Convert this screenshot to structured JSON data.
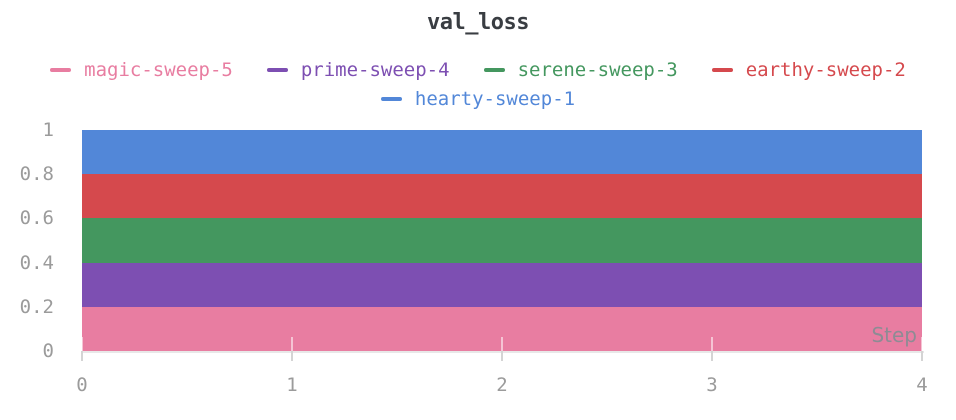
{
  "panel": {
    "title": "val_loss"
  },
  "colors": {
    "background": "#ffffff",
    "title_text": "#393d42",
    "axis_text": "#9b9b9b",
    "step_label_text": "#8e8b94",
    "axis_line": "#e8e8e8",
    "tick_mark": "#d4d4d4",
    "pink": "#e87da1",
    "purple": "#7d4fb2",
    "green": "#44975f",
    "red": "#d5494d",
    "blue": "#5287d8"
  },
  "chart_data": {
    "type": "area",
    "title": "val_loss",
    "xlabel": "Step",
    "ylabel": "",
    "x": [
      0,
      1,
      2,
      3,
      4
    ],
    "xlim": [
      0,
      4
    ],
    "ylim": [
      0,
      1
    ],
    "x_ticks": [
      0,
      1,
      2,
      3,
      4
    ],
    "x_tick_labels": [
      "0",
      "1",
      "2",
      "3",
      "4"
    ],
    "y_ticks": [
      1,
      0.8,
      0.6,
      0.4,
      0.2,
      0
    ],
    "y_tick_labels": [
      "1",
      "0.8",
      "0.6",
      "0.4",
      "0.2",
      "0"
    ],
    "grid": false,
    "legend_position": "top",
    "legend_rows": [
      [
        "magic-sweep-5",
        "prime-sweep-4",
        "serene-sweep-3",
        "earthy-sweep-2"
      ],
      [
        "hearty-sweep-1"
      ]
    ],
    "series": [
      {
        "name": "magic-sweep-5",
        "color": "#e87da1",
        "values": [
          0.2,
          0.2,
          0.2,
          0.2,
          0.2
        ]
      },
      {
        "name": "prime-sweep-4",
        "color": "#7d4fb2",
        "values": [
          0.4,
          0.4,
          0.4,
          0.4,
          0.4
        ]
      },
      {
        "name": "serene-sweep-3",
        "color": "#44975f",
        "values": [
          0.6,
          0.6,
          0.6,
          0.6,
          0.6
        ]
      },
      {
        "name": "earthy-sweep-2",
        "color": "#d5494d",
        "values": [
          0.8,
          0.8,
          0.8,
          0.8,
          0.8
        ]
      },
      {
        "name": "hearty-sweep-1",
        "color": "#5287d8",
        "values": [
          1.0,
          1.0,
          1.0,
          1.0,
          1.0
        ]
      }
    ],
    "note": "Overlapping constant-valued filled areas render as five stacked horizontal color bands"
  }
}
